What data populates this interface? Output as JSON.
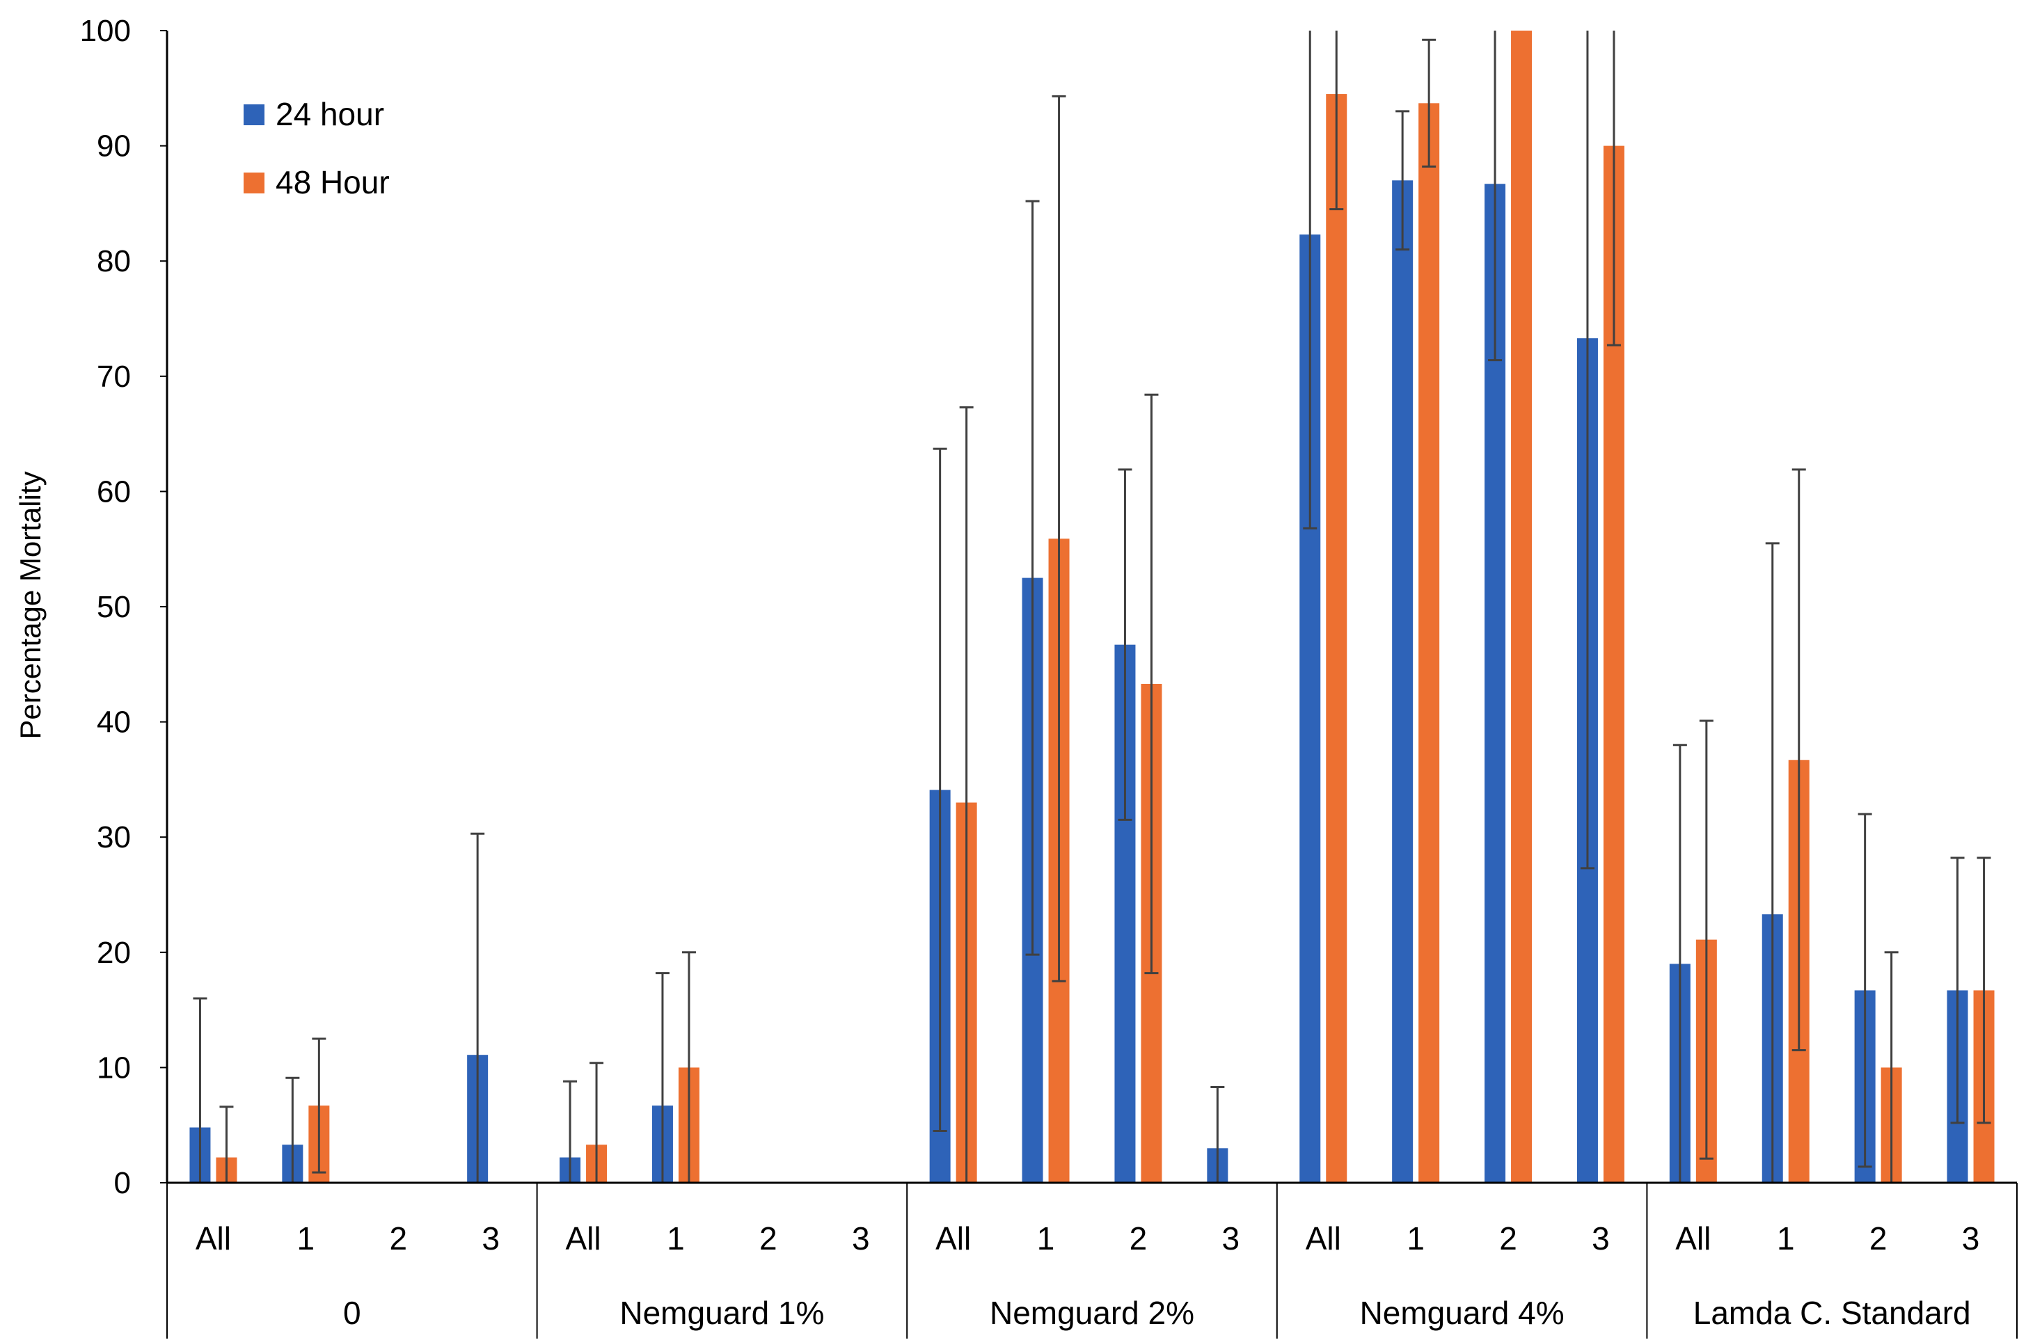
{
  "chart_data": {
    "type": "bar",
    "title": "",
    "xlabel": "",
    "ylabel": "Percentage Mortality",
    "ylim": [
      0,
      100
    ],
    "yticks": [
      "0",
      "10",
      "20",
      "30",
      "40",
      "50",
      "60",
      "70",
      "80",
      "90",
      "100"
    ],
    "grid": false,
    "legend_position": "top-left",
    "groups": [
      {
        "label": "0",
        "subcategories": [
          "All",
          "1",
          "2",
          "3"
        ]
      },
      {
        "label": "Nemguard 1%",
        "subcategories": [
          "All",
          "1",
          "2",
          "3"
        ]
      },
      {
        "label": "Nemguard 2%",
        "subcategories": [
          "All",
          "1",
          "2",
          "3"
        ]
      },
      {
        "label": "Nemguard 4%",
        "subcategories": [
          "All",
          "1",
          "2",
          "3"
        ]
      },
      {
        "label": "Lamda C. Standard",
        "subcategories": [
          "All",
          "1",
          "2",
          "3"
        ]
      }
    ],
    "series": [
      {
        "name": "24 hour",
        "color": "#2E63B8",
        "values": [
          4.8,
          3.3,
          0,
          11.1,
          2.2,
          6.7,
          0,
          0,
          34.1,
          52.5,
          46.7,
          3.0,
          82.3,
          87.0,
          86.7,
          73.3,
          19.0,
          23.3,
          16.7,
          16.7
        ],
        "error": [
          11.2,
          5.8,
          0,
          19.2,
          6.6,
          11.5,
          0,
          0,
          29.6,
          32.7,
          15.2,
          5.3,
          25.5,
          6.0,
          15.3,
          46.0,
          19.0,
          32.2,
          15.3,
          11.5
        ]
      },
      {
        "name": "48 Hour",
        "color": "#ED7031",
        "values": [
          2.2,
          6.7,
          0,
          0,
          3.3,
          10.0,
          0,
          0,
          33.0,
          55.9,
          43.3,
          0,
          94.5,
          93.7,
          100,
          90.0,
          21.1,
          36.7,
          10.0,
          16.7
        ],
        "error": [
          4.4,
          5.8,
          0,
          0,
          7.1,
          10.0,
          0,
          0,
          34.3,
          38.4,
          25.1,
          0,
          10.0,
          5.5,
          0,
          17.3,
          19.0,
          25.2,
          10.0,
          11.5
        ]
      }
    ]
  }
}
